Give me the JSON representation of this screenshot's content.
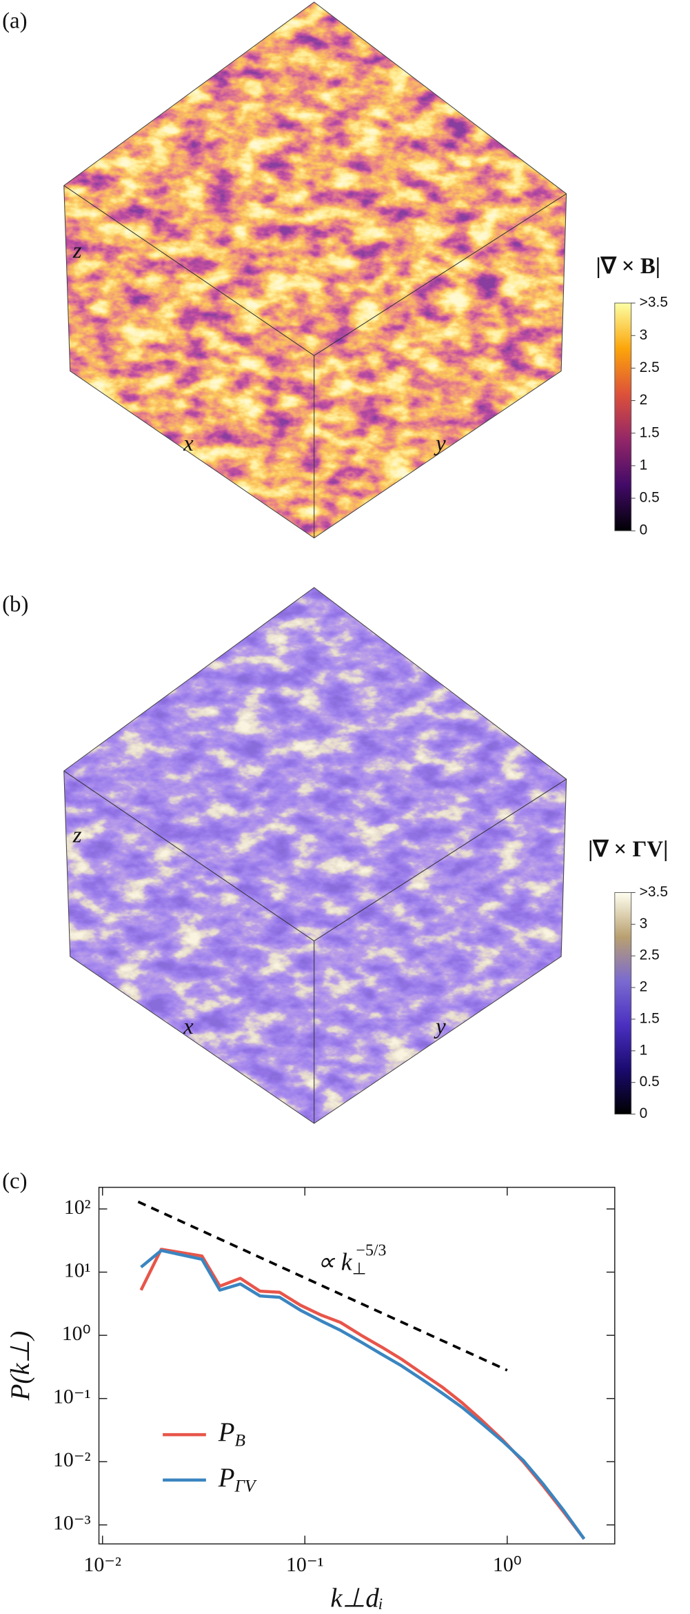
{
  "panels": [
    {
      "label": "(a)",
      "axes": {
        "x": "x",
        "y": "y",
        "z": "z"
      }
    },
    {
      "label": "(b)",
      "axes": {
        "x": "x",
        "y": "y",
        "z": "z"
      }
    },
    {
      "label": "(c)"
    }
  ],
  "chart_data": [
    {
      "type": "colorbar",
      "title": "|∇ × B|",
      "ylim": [
        0,
        3.5
      ],
      "yticks": [
        0,
        0.5,
        1,
        1.5,
        2,
        2.5,
        3,
        {
          "value": 3.5,
          "label": ">3.5"
        }
      ],
      "colors": [
        "#000004",
        "#420a68",
        "#932667",
        "#dd513a",
        "#fca50a",
        "#fcffa4"
      ]
    },
    {
      "type": "colorbar",
      "title": "|∇ × ΓV|",
      "ylim": [
        0,
        3.5
      ],
      "yticks": [
        0,
        0.5,
        1,
        1.5,
        2,
        2.5,
        3,
        {
          "value": 3.5,
          "label": ">3.5"
        }
      ],
      "colors": [
        "#000000",
        "#1a0a6e",
        "#4a2fc0",
        "#7a6ad0",
        "#b9a070",
        "#fffff0"
      ]
    },
    {
      "type": "line",
      "xlabel": "k⊥dᵢ",
      "ylabel": "P(k⊥)",
      "xlog": true,
      "ylog": true,
      "xlim": [
        0.0096,
        3.4
      ],
      "ylim": [
        0.0005,
        220
      ],
      "xticks": [
        {
          "value": 0.01,
          "label": "10⁻²"
        },
        {
          "value": 0.1,
          "label": "10⁻¹"
        },
        {
          "value": 1,
          "label": "10⁰"
        }
      ],
      "yticks": [
        {
          "value": 0.001,
          "label": "10⁻³"
        },
        {
          "value": 0.01,
          "label": "10⁻²"
        },
        {
          "value": 0.1,
          "label": "10⁻¹"
        },
        {
          "value": 1,
          "label": "10⁰"
        },
        {
          "value": 10,
          "label": "10¹"
        },
        {
          "value": 100,
          "label": "10²"
        }
      ],
      "x": [
        0.0155,
        0.0195,
        0.031,
        0.038,
        0.048,
        0.06,
        0.075,
        0.095,
        0.12,
        0.15,
        0.19,
        0.24,
        0.3,
        0.38,
        0.48,
        0.6,
        0.75,
        0.95,
        1.2,
        1.5,
        1.9,
        2.4
      ],
      "series": [
        {
          "name": "P",
          "subscript": "B",
          "color": "#e8554a",
          "values": [
            5.2,
            23,
            18,
            6,
            8,
            5,
            4.8,
            3,
            2.1,
            1.6,
            1.0,
            0.65,
            0.42,
            0.25,
            0.15,
            0.085,
            0.045,
            0.022,
            0.01,
            0.0042,
            0.0016,
            0.0006
          ]
        },
        {
          "name": "P",
          "subscript": "ΓV",
          "color": "#3a85c0",
          "values": [
            12,
            22,
            16,
            5.2,
            6.5,
            4.2,
            4.0,
            2.5,
            1.7,
            1.2,
            0.78,
            0.5,
            0.33,
            0.2,
            0.12,
            0.072,
            0.04,
            0.021,
            0.0105,
            0.0045,
            0.0017,
            0.0006
          ]
        }
      ],
      "reference_line": {
        "x": [
          0.015,
          1.0
        ],
        "y": [
          130,
          0.28
        ],
        "color": "#000000"
      },
      "annotation": {
        "text": "∝ k",
        "sub": "⊥",
        "sup": "−5/3"
      },
      "legend": "lower left"
    }
  ]
}
